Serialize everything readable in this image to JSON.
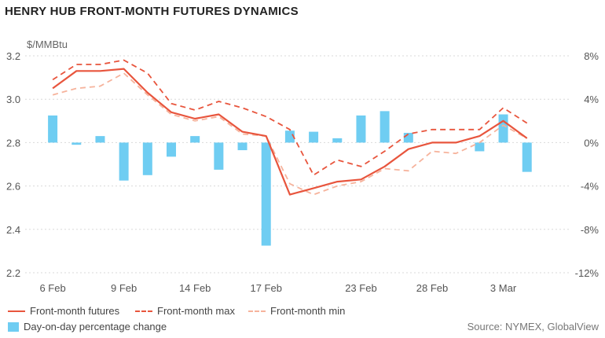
{
  "chart_data": {
    "type": "line",
    "title": "HENRY HUB FRONT-MONTH FUTURES DYNAMICS",
    "left_axis_unit": "$/MMBtu",
    "x_tick_labels": [
      "6 Feb",
      "9 Feb",
      "14 Feb",
      "17 Feb",
      "23 Feb",
      "28 Feb",
      "3 Mar"
    ],
    "left_axis": {
      "ticks": [
        "2.2",
        "2.4",
        "2.6",
        "2.8",
        "3.0",
        "3.2"
      ],
      "range": [
        2.2,
        3.2
      ]
    },
    "right_axis": {
      "ticks": [
        "-12%",
        "-8%",
        "-4%",
        "0%",
        "4%",
        "8%"
      ],
      "range": [
        -12,
        8
      ]
    },
    "grid": "horizontal dotted",
    "legend_position": "bottom-left",
    "dates": [
      "6 Feb",
      "7 Feb",
      "8 Feb",
      "9 Feb",
      "10 Feb",
      "13 Feb",
      "14 Feb",
      "15 Feb",
      "16 Feb",
      "17 Feb",
      "20 Feb",
      "21 Feb",
      "22 Feb",
      "23 Feb",
      "24 Feb",
      "27 Feb",
      "28 Feb",
      "1 Mar",
      "2 Mar",
      "3 Mar",
      "6 Mar",
      "7 Mar"
    ],
    "series": [
      {
        "name": "Front-month futures",
        "type": "line",
        "axis": "left",
        "color": "#e8553d",
        "dash": "solid",
        "values": [
          3.05,
          3.13,
          3.13,
          3.14,
          3.03,
          2.94,
          2.91,
          2.93,
          2.85,
          2.83,
          2.56,
          2.59,
          2.62,
          2.63,
          2.69,
          2.77,
          2.8,
          2.8,
          2.83,
          2.9,
          2.82,
          null
        ]
      },
      {
        "name": "Front-month max",
        "type": "line",
        "axis": "left",
        "color": "#e8553d",
        "dash": "dashed",
        "values": [
          3.09,
          3.16,
          3.16,
          3.18,
          3.12,
          2.98,
          2.95,
          2.99,
          2.96,
          2.92,
          2.86,
          2.65,
          2.72,
          2.69,
          2.76,
          2.84,
          2.86,
          2.86,
          2.86,
          2.96,
          2.89,
          null
        ]
      },
      {
        "name": "Front-month min",
        "type": "line",
        "axis": "left",
        "color": "#f6b39c",
        "dash": "dashed",
        "values": [
          3.02,
          3.05,
          3.06,
          3.12,
          3.02,
          2.93,
          2.9,
          2.92,
          2.84,
          2.83,
          2.61,
          2.56,
          2.6,
          2.62,
          2.68,
          2.67,
          2.76,
          2.75,
          2.8,
          2.88,
          2.82,
          null
        ]
      },
      {
        "name": "Day-on-day percentage change",
        "type": "bar",
        "axis": "right",
        "color": "#6fcdf2",
        "values": [
          2.5,
          -0.2,
          0.6,
          -3.5,
          -3.0,
          -1.3,
          0.6,
          -2.5,
          -0.7,
          -9.5,
          1.1,
          1.0,
          0.4,
          2.5,
          2.9,
          0.9,
          null,
          null,
          -0.8,
          2.6,
          -2.7,
          null
        ]
      }
    ],
    "source": "Source: NYMEX, GlobalView"
  },
  "colors": {
    "accent": "#e8553d",
    "accent_light": "#f6b39c",
    "bar": "#6fcdf2"
  }
}
